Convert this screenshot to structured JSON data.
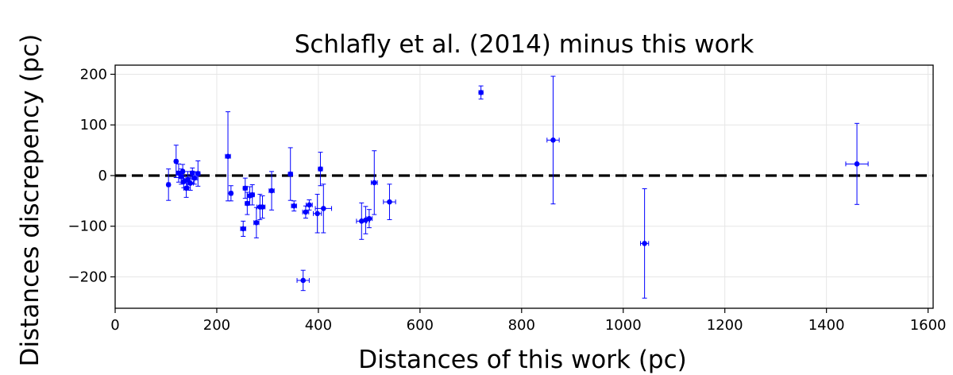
{
  "chart_data": {
    "type": "scatter",
    "title": "Schlafly et al. (2014) minus this work",
    "xlabel": "Distances of this work (pc)",
    "ylabel": "Distances discrepency (pc)",
    "xlim": [
      0,
      1610
    ],
    "ylim": [
      -262,
      218
    ],
    "xticks": [
      0,
      200,
      400,
      600,
      800,
      1000,
      1200,
      1400,
      1600
    ],
    "yticks": [
      -200,
      -100,
      0,
      100,
      200
    ],
    "xtick_labels": [
      "0",
      "200",
      "400",
      "600",
      "800",
      "1000",
      "1200",
      "1400",
      "1600"
    ],
    "ytick_labels": [
      "−200",
      "−100",
      "0",
      "100",
      "200"
    ],
    "grid": true,
    "reference_line": {
      "y": 0,
      "style": "dashed",
      "color": "#000000"
    },
    "marker_color": "#0000ff",
    "points": [
      {
        "x": 105,
        "y": -18,
        "yerr": 31,
        "xerr": 3
      },
      {
        "x": 120,
        "y": 28,
        "yerr": 32,
        "xerr": 3
      },
      {
        "x": 125,
        "y": 5,
        "yerr": 18,
        "xerr": 4
      },
      {
        "x": 130,
        "y": -2,
        "yerr": 15,
        "xerr": 4
      },
      {
        "x": 133,
        "y": 8,
        "yerr": 14,
        "xerr": 3
      },
      {
        "x": 135,
        "y": -12,
        "yerr": 12,
        "xerr": 5
      },
      {
        "x": 140,
        "y": -25,
        "yerr": 18,
        "xerr": 5
      },
      {
        "x": 143,
        "y": -8,
        "yerr": 16,
        "xerr": 4
      },
      {
        "x": 148,
        "y": -15,
        "yerr": 14,
        "xerr": 6
      },
      {
        "x": 152,
        "y": 5,
        "yerr": 10,
        "xerr": 4
      },
      {
        "x": 156,
        "y": -5,
        "yerr": 12,
        "xerr": 5
      },
      {
        "x": 163,
        "y": 4,
        "yerr": 25,
        "xerr": 4
      },
      {
        "x": 222,
        "y": 38,
        "yerr": 88,
        "xerr": 5
      },
      {
        "x": 228,
        "y": -35,
        "yerr": 15,
        "xerr": 3
      },
      {
        "x": 252,
        "y": -105,
        "yerr": 15,
        "xerr": 5
      },
      {
        "x": 256,
        "y": -25,
        "yerr": 20,
        "xerr": 4
      },
      {
        "x": 260,
        "y": -55,
        "yerr": 22,
        "xerr": 4
      },
      {
        "x": 265,
        "y": -40,
        "yerr": 18,
        "xerr": 5
      },
      {
        "x": 270,
        "y": -38,
        "yerr": 20,
        "xerr": 4
      },
      {
        "x": 278,
        "y": -93,
        "yerr": 30,
        "xerr": 5
      },
      {
        "x": 285,
        "y": -62,
        "yerr": 25,
        "xerr": 6
      },
      {
        "x": 290,
        "y": -62,
        "yerr": 22,
        "xerr": 5
      },
      {
        "x": 308,
        "y": -30,
        "yerr": 38,
        "xerr": 5
      },
      {
        "x": 345,
        "y": 3,
        "yerr": 52,
        "xerr": 4
      },
      {
        "x": 352,
        "y": -60,
        "yerr": 10,
        "xerr": 5
      },
      {
        "x": 370,
        "y": -207,
        "yerr": 20,
        "xerr": 12
      },
      {
        "x": 375,
        "y": -72,
        "yerr": 12,
        "xerr": 6
      },
      {
        "x": 382,
        "y": -58,
        "yerr": 10,
        "xerr": 6
      },
      {
        "x": 398,
        "y": -75,
        "yerr": 38,
        "xerr": 8
      },
      {
        "x": 404,
        "y": 13,
        "yerr": 33,
        "xerr": 4
      },
      {
        "x": 410,
        "y": -65,
        "yerr": 48,
        "xerr": 16
      },
      {
        "x": 485,
        "y": -90,
        "yerr": 36,
        "xerr": 10
      },
      {
        "x": 493,
        "y": -88,
        "yerr": 27,
        "xerr": 8
      },
      {
        "x": 500,
        "y": -85,
        "yerr": 18,
        "xerr": 6
      },
      {
        "x": 510,
        "y": -14,
        "yerr": 63,
        "xerr": 6
      },
      {
        "x": 540,
        "y": -52,
        "yerr": 35,
        "xerr": 12
      },
      {
        "x": 720,
        "y": 164,
        "yerr": 13,
        "xerr": 4
      },
      {
        "x": 862,
        "y": 70,
        "yerr": 126,
        "xerr": 12
      },
      {
        "x": 1042,
        "y": -134,
        "yerr": 108,
        "xerr": 8
      },
      {
        "x": 1460,
        "y": 23,
        "yerr": 80,
        "xerr": 22
      }
    ]
  }
}
